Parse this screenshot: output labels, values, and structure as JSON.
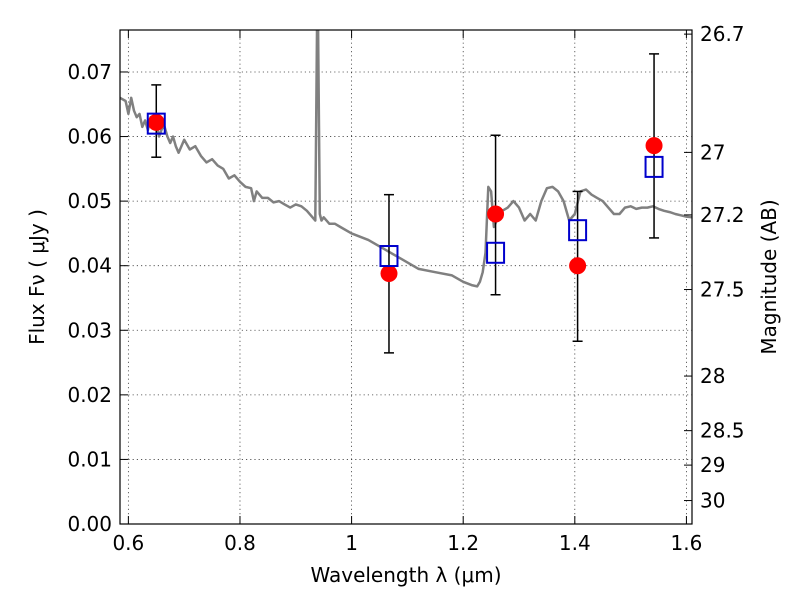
{
  "chart_data": {
    "type": "scatter",
    "xlabel": "Wavelength  λ (μm)",
    "ylabel": "Flux  Fν  ( μJy )",
    "ylabel2": "Magnitude (AB)",
    "xlim": [
      0.585,
      1.61
    ],
    "ylim": [
      0.0,
      0.0765
    ],
    "x_ticks": [
      {
        "value": 0.6,
        "label": "0.6"
      },
      {
        "value": 0.8,
        "label": "0.8"
      },
      {
        "value": 1.0,
        "label": "1"
      },
      {
        "value": 1.2,
        "label": "1.2"
      },
      {
        "value": 1.4,
        "label": "1.4"
      },
      {
        "value": 1.6,
        "label": "1.6"
      }
    ],
    "y_ticks": [
      {
        "value": 0.0,
        "label": "0.00"
      },
      {
        "value": 0.01,
        "label": "0.01"
      },
      {
        "value": 0.02,
        "label": "0.02"
      },
      {
        "value": 0.03,
        "label": "0.03"
      },
      {
        "value": 0.04,
        "label": "0.04"
      },
      {
        "value": 0.05,
        "label": "0.05"
      },
      {
        "value": 0.06,
        "label": "0.06"
      },
      {
        "value": 0.07,
        "label": "0.07"
      }
    ],
    "y2_ticks": [
      {
        "value": 26.7,
        "label": "26.7"
      },
      {
        "value": 27.0,
        "label": "27"
      },
      {
        "value": 27.2,
        "label": "27.2"
      },
      {
        "value": 27.5,
        "label": "27.5"
      },
      {
        "value": 28.0,
        "label": "28"
      },
      {
        "value": 28.5,
        "label": "28.5"
      },
      {
        "value": 29.0,
        "label": "29"
      },
      {
        "value": 30.0,
        "label": "30"
      }
    ],
    "grid": true,
    "series": [
      {
        "kind": "line",
        "color": "#808080",
        "x": [
          0.585,
          0.595,
          0.6,
          0.605,
          0.61,
          0.615,
          0.62,
          0.625,
          0.63,
          0.635,
          0.64,
          0.645,
          0.65,
          0.655,
          0.66,
          0.665,
          0.67,
          0.675,
          0.68,
          0.685,
          0.69,
          0.7,
          0.71,
          0.72,
          0.73,
          0.74,
          0.75,
          0.76,
          0.77,
          0.78,
          0.79,
          0.8,
          0.81,
          0.82,
          0.825,
          0.83,
          0.84,
          0.85,
          0.86,
          0.87,
          0.88,
          0.89,
          0.9,
          0.91,
          0.92,
          0.93,
          0.935,
          0.938,
          0.94,
          0.943,
          0.946,
          0.95,
          0.96,
          0.97,
          0.98,
          1.0,
          1.03,
          1.06,
          1.09,
          1.12,
          1.15,
          1.18,
          1.2,
          1.215,
          1.225,
          1.23,
          1.235,
          1.24,
          1.245,
          1.25,
          1.255,
          1.26,
          1.27,
          1.28,
          1.29,
          1.3,
          1.31,
          1.32,
          1.33,
          1.34,
          1.35,
          1.36,
          1.37,
          1.38,
          1.39,
          1.4,
          1.41,
          1.42,
          1.43,
          1.44,
          1.45,
          1.46,
          1.47,
          1.48,
          1.49,
          1.5,
          1.51,
          1.52,
          1.53,
          1.54,
          1.55,
          1.56,
          1.57,
          1.58,
          1.59,
          1.6,
          1.61
        ],
        "y": [
          0.066,
          0.0655,
          0.0635,
          0.066,
          0.064,
          0.063,
          0.0635,
          0.0615,
          0.0625,
          0.061,
          0.063,
          0.0615,
          0.062,
          0.06,
          0.0612,
          0.0615,
          0.06,
          0.059,
          0.06,
          0.0585,
          0.0575,
          0.0595,
          0.058,
          0.0585,
          0.057,
          0.056,
          0.0565,
          0.0555,
          0.055,
          0.0535,
          0.054,
          0.053,
          0.0522,
          0.052,
          0.05,
          0.0515,
          0.0505,
          0.0505,
          0.0498,
          0.05,
          0.0495,
          0.049,
          0.0495,
          0.0492,
          0.0485,
          0.0475,
          0.047,
          0.0765,
          0.0765,
          0.048,
          0.047,
          0.0475,
          0.0465,
          0.0465,
          0.046,
          0.045,
          0.044,
          0.0425,
          0.041,
          0.0395,
          0.039,
          0.0385,
          0.0375,
          0.037,
          0.0368,
          0.0375,
          0.039,
          0.042,
          0.0522,
          0.0515,
          0.046,
          0.047,
          0.0485,
          0.049,
          0.05,
          0.049,
          0.047,
          0.048,
          0.047,
          0.05,
          0.052,
          0.0522,
          0.0515,
          0.05,
          0.047,
          0.048,
          0.0515,
          0.0518,
          0.051,
          0.0505,
          0.05,
          0.049,
          0.048,
          0.048,
          0.049,
          0.0492,
          0.0488,
          0.049,
          0.049,
          0.0492,
          0.0488,
          0.0485,
          0.0483,
          0.048,
          0.0478,
          0.0476,
          0.0475
        ]
      },
      {
        "kind": "points",
        "marker": "circle",
        "color": "#ff0000",
        "x": [
          0.65,
          1.067,
          1.258,
          1.405,
          1.542
        ],
        "y": [
          0.0622,
          0.0388,
          0.048,
          0.04,
          0.0586
        ],
        "y_err_low": [
          0.0568,
          0.0265,
          0.0355,
          0.0283,
          0.0443
        ],
        "y_err_high": [
          0.068,
          0.051,
          0.0602,
          0.0515,
          0.0728
        ],
        "error_bar_color": "#000000"
      },
      {
        "kind": "points",
        "marker": "open-square",
        "color": "#0000cc",
        "x": [
          0.65,
          1.067,
          1.258,
          1.405,
          1.542
        ],
        "y": [
          0.062,
          0.0415,
          0.042,
          0.0455,
          0.0553
        ]
      }
    ]
  }
}
